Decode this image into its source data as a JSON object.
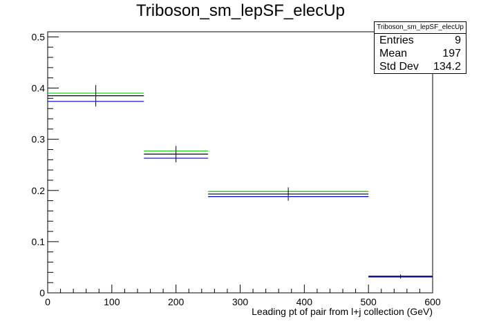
{
  "chart_data": {
    "type": "histogram",
    "title": "Triboson_sm_lepSF_elecUp",
    "xlabel": "Leading pt of pair from l+j collection (GeV)",
    "ylabel": "",
    "xlim": [
      0,
      600
    ],
    "ylim": [
      0,
      0.51
    ],
    "xticks": [
      0,
      100,
      200,
      300,
      400,
      500,
      600
    ],
    "yticks": [
      0,
      0.1,
      0.2,
      0.3,
      0.4,
      0.5
    ],
    "xtick_labels": [
      "0",
      "100",
      "200",
      "300",
      "400",
      "500",
      "600"
    ],
    "ytick_labels": [
      "0",
      "0.1",
      "0.2",
      "0.3",
      "0.4",
      "0.5"
    ],
    "bins": [
      [
        0,
        150
      ],
      [
        150,
        250
      ],
      [
        250,
        500
      ],
      [
        500,
        600
      ]
    ],
    "series": [
      {
        "color": "#00cc00",
        "values": [
          0.39,
          0.277,
          0.198,
          0.033
        ],
        "errors": [
          0,
          0,
          0,
          0
        ]
      },
      {
        "color": "#000000",
        "values": [
          0.385,
          0.271,
          0.193,
          0.032
        ],
        "errors": [
          0.021,
          0.016,
          0.013,
          0.004
        ]
      },
      {
        "color": "#0000cc",
        "values": [
          0.374,
          0.263,
          0.188,
          0.031
        ],
        "errors": [
          0,
          0,
          0,
          0
        ]
      }
    ],
    "grid": false,
    "stats": {
      "title": "Triboson_sm_lepSF_elecUp",
      "rows": [
        {
          "label": "Entries",
          "value": "9"
        },
        {
          "label": "Mean",
          "value": "197"
        },
        {
          "label": "Std Dev",
          "value": "134.2"
        }
      ]
    }
  }
}
